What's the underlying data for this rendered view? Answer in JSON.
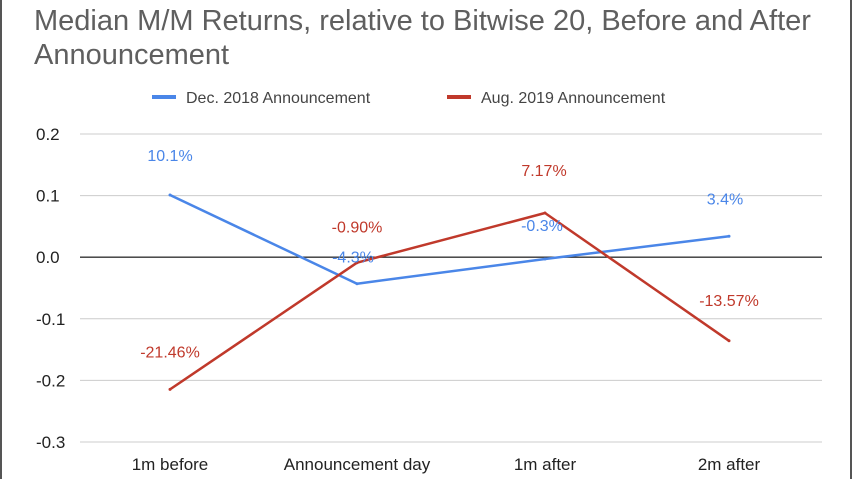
{
  "chart_data": {
    "type": "line",
    "title": "Median M/M Returns, relative to Bitwise 20, Before and After Announcement",
    "categories": [
      "1m before",
      "Announcement day",
      "1m after",
      "2m after"
    ],
    "ylim": [
      -0.3,
      0.2
    ],
    "yticks": [
      0.2,
      0.1,
      0.0,
      -0.1,
      -0.2,
      -0.3
    ],
    "ytick_labels": [
      "0.2",
      "0.1",
      "0.0",
      "-0.1",
      "-0.2",
      "-0.3"
    ],
    "xlabel": "",
    "ylabel": "",
    "grid": true,
    "legend_position": "top",
    "series": [
      {
        "name": "Dec. 2018 Announcement",
        "color": "#4a86e8",
        "values": [
          0.101,
          -0.043,
          -0.003,
          0.034
        ],
        "labels": [
          "10.1%",
          "-4.3%",
          "-0.3%",
          "3.4%"
        ]
      },
      {
        "name": "Aug. 2019 Announcement",
        "color": "#c0392b",
        "values": [
          -0.2146,
          -0.009,
          0.0717,
          -0.1357
        ],
        "labels": [
          "-21.46%",
          "-0.90%",
          "7.17%",
          "-13.57%"
        ]
      }
    ]
  }
}
